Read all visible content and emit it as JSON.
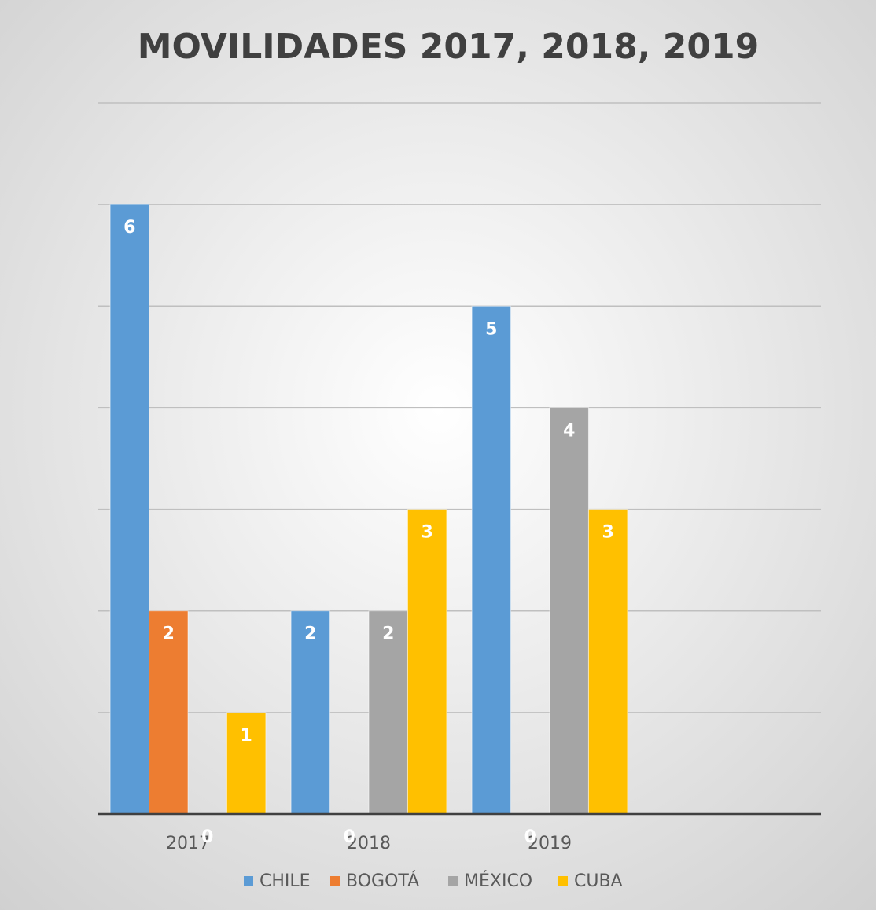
{
  "chart_data": {
    "type": "bar",
    "title": "MOVILIDADES 2017, 2018, 2019",
    "categories": [
      "2017",
      "2018",
      "2019",
      null
    ],
    "series": [
      {
        "name": "CHILE",
        "color": "#5b9bd5",
        "values": [
          6,
          2,
          5,
          null
        ]
      },
      {
        "name": "BOGOTÁ",
        "color": "#ed7d31",
        "values": [
          2,
          0,
          0,
          null
        ]
      },
      {
        "name": "MÉXICO",
        "color": "#a5a5a5",
        "values": [
          0,
          2,
          4,
          null
        ]
      },
      {
        "name": "CUBA",
        "color": "#ffc000",
        "values": [
          1,
          3,
          3,
          null
        ]
      }
    ],
    "ylim": [
      0,
      7
    ],
    "yticks": [
      0,
      1,
      2,
      3,
      4,
      5,
      6,
      7
    ],
    "grid": true,
    "legend": "bottom"
  }
}
